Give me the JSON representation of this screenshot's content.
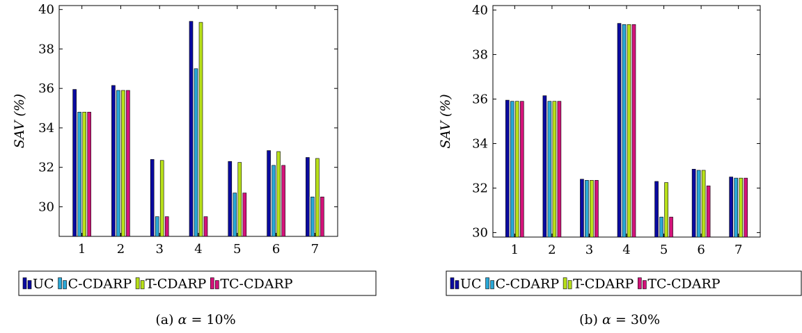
{
  "series_colors": [
    "#0a0aa0",
    "#2aa7d6",
    "#b8e01a",
    "#d3137a"
  ],
  "chart_data": [
    {
      "type": "bar",
      "categories": [
        "1",
        "2",
        "3",
        "4",
        "5",
        "6",
        "7"
      ],
      "ylabel": "SAV (%)",
      "ylim": [
        28.5,
        40.2
      ],
      "yticks": [
        "30",
        "32",
        "34",
        "36",
        "38",
        "40"
      ],
      "caption": {
        "label": "(a)",
        "symbol": "α",
        "eq": "=",
        "value": "10%"
      },
      "legend_position": "bottom",
      "series": [
        {
          "name": "UC",
          "values": [
            35.95,
            36.15,
            32.4,
            39.4,
            32.3,
            32.85,
            32.5
          ]
        },
        {
          "name": "C-CDARP",
          "values": [
            34.8,
            35.9,
            29.5,
            37.0,
            30.7,
            32.1,
            30.5
          ]
        },
        {
          "name": "T-CDARP",
          "values": [
            34.8,
            35.9,
            32.35,
            39.35,
            32.25,
            32.8,
            32.45
          ]
        },
        {
          "name": "TC-CDARP",
          "values": [
            34.8,
            35.9,
            29.5,
            29.5,
            30.7,
            32.1,
            30.5
          ]
        }
      ]
    },
    {
      "type": "bar",
      "categories": [
        "1",
        "2",
        "3",
        "4",
        "5",
        "6",
        "7"
      ],
      "ylabel": "SAV (%)",
      "ylim": [
        29.8,
        40.2
      ],
      "yticks": [
        "30",
        "32",
        "34",
        "36",
        "38",
        "40"
      ],
      "caption": {
        "label": "(b)",
        "symbol": "α",
        "eq": "=",
        "value": "30%"
      },
      "legend_position": "bottom",
      "series": [
        {
          "name": "UC",
          "values": [
            35.95,
            36.15,
            32.4,
            39.4,
            32.3,
            32.85,
            32.5
          ]
        },
        {
          "name": "C-CDARP",
          "values": [
            35.9,
            35.9,
            32.35,
            39.35,
            30.7,
            32.8,
            32.45
          ]
        },
        {
          "name": "T-CDARP",
          "values": [
            35.9,
            35.9,
            32.35,
            39.35,
            32.25,
            32.8,
            32.45
          ]
        },
        {
          "name": "TC-CDARP",
          "values": [
            35.9,
            35.9,
            32.35,
            39.35,
            30.7,
            32.1,
            32.45
          ]
        }
      ]
    }
  ]
}
